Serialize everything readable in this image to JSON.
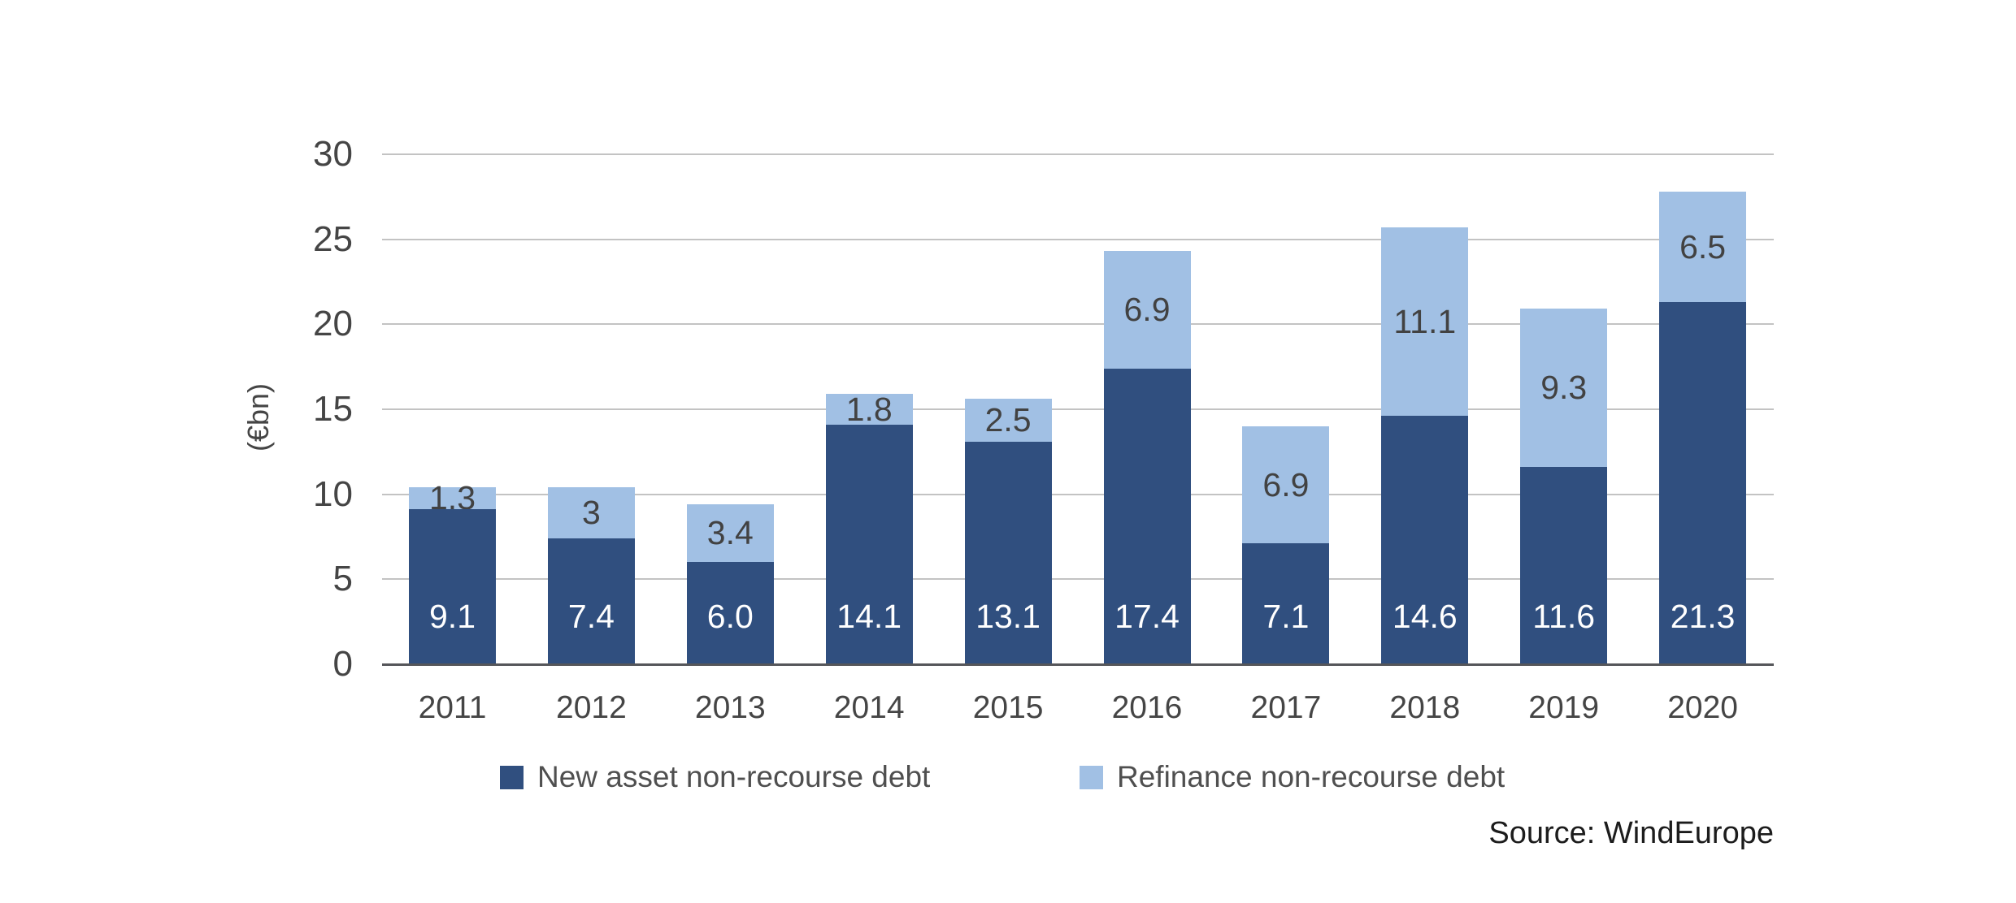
{
  "chart_data": {
    "type": "bar",
    "stacked": true,
    "title": "",
    "xlabel": "",
    "ylabel": "(€bn)",
    "ylim": [
      0,
      30
    ],
    "yticks": [
      0,
      5,
      10,
      15,
      20,
      25,
      30
    ],
    "grid": true,
    "legend_position": "bottom",
    "categories": [
      "2011",
      "2012",
      "2013",
      "2014",
      "2015",
      "2016",
      "2017",
      "2018",
      "2019",
      "2020"
    ],
    "series": [
      {
        "name": "New asset non-recourse debt",
        "color": "#304f7f",
        "label_color": "#ffffff",
        "values": [
          9.1,
          7.4,
          6.0,
          14.1,
          13.1,
          17.4,
          7.1,
          14.6,
          11.6,
          21.3
        ],
        "labels": [
          "9.1",
          "7.4",
          "6.0",
          "14.1",
          "13.1",
          "17.4",
          "7.1",
          "14.6",
          "11.6",
          "21.3"
        ]
      },
      {
        "name": "Refinance non-recourse debt",
        "color": "#a1c0e4",
        "label_color": "#424242",
        "values": [
          1.3,
          3,
          3.4,
          1.8,
          2.5,
          6.9,
          6.9,
          11.1,
          9.3,
          6.5
        ],
        "labels": [
          "1.3",
          "3",
          "3.4",
          "1.8",
          "2.5",
          "6.9",
          "6.9",
          "11.1",
          "9.3",
          "6.5"
        ]
      }
    ]
  },
  "source": {
    "text": "Source: WindEurope"
  }
}
